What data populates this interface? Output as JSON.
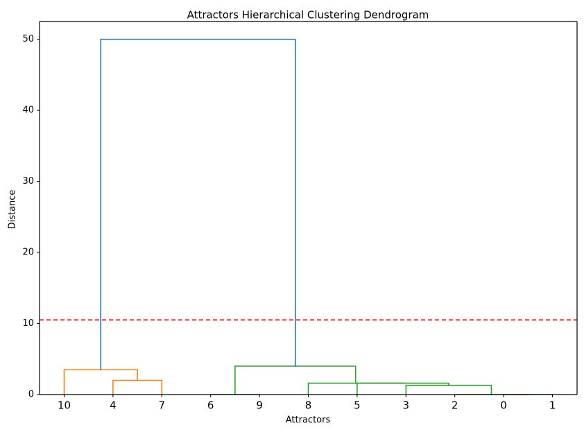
{
  "chart_data": {
    "type": "dendrogram",
    "title": "Attractors Hierarchical Clustering Dendrogram",
    "xlabel": "Attractors",
    "ylabel": "Distance",
    "ylim": [
      0,
      52.5
    ],
    "yticks": [
      0,
      10,
      20,
      30,
      40,
      50
    ],
    "leaf_order": [
      "10",
      "4",
      "7",
      "6",
      "9",
      "8",
      "5",
      "3",
      "2",
      "0",
      "1"
    ],
    "threshold": {
      "value": 10.5,
      "color": "#ff0000",
      "style": "dashed"
    },
    "merges": [
      {
        "left": "0",
        "right": "1",
        "distance": 0.0,
        "color": "#2ca02c"
      },
      {
        "left": "6",
        "right": "9",
        "distance": 0.0,
        "color": "#2ca02c"
      },
      {
        "left": "2",
        "right": "0,1",
        "distance": 0.0,
        "color": "#2ca02c"
      },
      {
        "left": "3",
        "right": "2,0,1",
        "distance": 1.3,
        "color": "#2ca02c"
      },
      {
        "left": "5",
        "right": "3,2,0,1",
        "distance": 1.6,
        "color": "#2ca02c"
      },
      {
        "left": "8",
        "right": "5,3,2,0,1",
        "distance": 1.6,
        "color": "#2ca02c"
      },
      {
        "left": "4",
        "right": "7",
        "distance": 2.0,
        "color": "#ff7f0e"
      },
      {
        "left": "10",
        "right": "4,7",
        "distance": 3.5,
        "color": "#ff7f0e"
      },
      {
        "left": "6,9",
        "right": "8,5,3,2,0,1",
        "distance": 4.0,
        "color": "#2ca02c"
      },
      {
        "left": "10,4,7",
        "right": "6,9,8,5,3,2,0,1",
        "distance": 50.0,
        "color": "#1f77b4"
      }
    ],
    "colors": {
      "cluster_1": "#ff7f0e",
      "cluster_2": "#2ca02c",
      "root": "#1f77b4",
      "threshold": "#ff0000",
      "axis": "#000000"
    },
    "grid": false,
    "legend": false
  }
}
